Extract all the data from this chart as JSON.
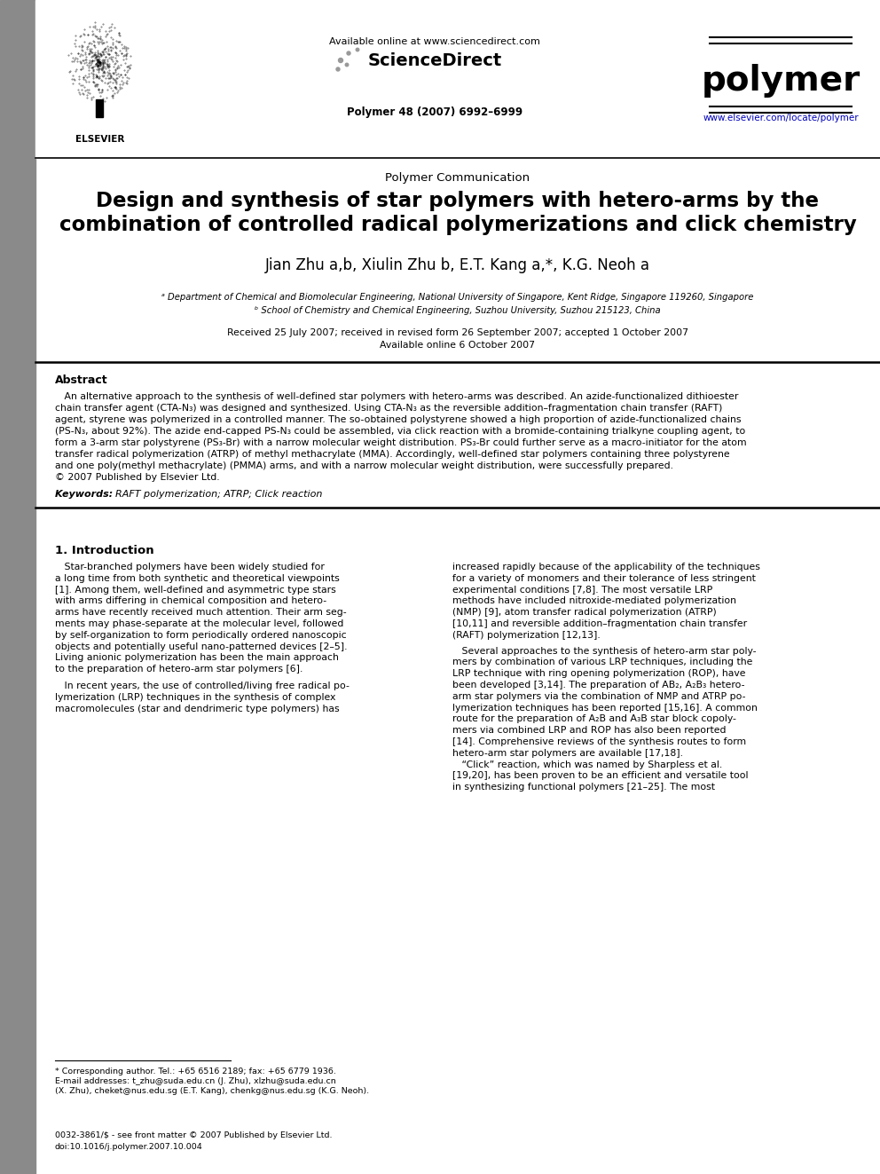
{
  "bg_color": "#ffffff",
  "left_bar_color": "#8a8a8a",
  "available_online": "Available online at www.sciencedirect.com",
  "sciencedirect": "ScienceDirect",
  "journal_name": "polymer",
  "polymer_citation": "Polymer 48 (2007) 6992–6999",
  "journal_url": "www.elsevier.com/locate/polymer",
  "article_type": "Polymer Communication",
  "title_line1": "Design and synthesis of star polymers with hetero-arms by the",
  "title_line2": "combination of controlled radical polymerizations and click chemistry",
  "authors_text": "Jian Zhu a,b, Xiulin Zhu b, E.T. Kang a,*, K.G. Neoh a",
  "affil1": "ᵃ Department of Chemical and Biomolecular Engineering, National University of Singapore, Kent Ridge, Singapore 119260, Singapore",
  "affil2": "ᵇ School of Chemistry and Chemical Engineering, Suzhou University, Suzhou 215123, China",
  "received": "Received 25 July 2007; received in revised form 26 September 2007; accepted 1 October 2007",
  "available_date": "Available online 6 October 2007",
  "abstract_title": "Abstract",
  "keywords_text": "RAFT polymerization; ATRP; Click reaction",
  "section1_title": "1. Introduction",
  "abstract_lines": [
    "   An alternative approach to the synthesis of well-defined star polymers with hetero-arms was described. An azide-functionalized dithioester",
    "chain transfer agent (CTA-N₃) was designed and synthesized. Using CTA-N₃ as the reversible addition–fragmentation chain transfer (RAFT)",
    "agent, styrene was polymerized in a controlled manner. The so-obtained polystyrene showed a high proportion of azide-functionalized chains",
    "(PS-N₃, about 92%). The azide end-capped PS-N₃ could be assembled, via click reaction with a bromide-containing trialkyne coupling agent, to",
    "form a 3-arm star polystyrene (PS₃-Br) with a narrow molecular weight distribution. PS₃-Br could further serve as a macro-initiator for the atom",
    "transfer radical polymerization (ATRP) of methyl methacrylate (MMA). Accordingly, well-defined star polymers containing three polystyrene",
    "and one poly(methyl methacrylate) (PMMA) arms, and with a narrow molecular weight distribution, were successfully prepared.",
    "© 2007 Published by Elsevier Ltd."
  ],
  "col1_lines": [
    "   Star-branched polymers have been widely studied for",
    "a long time from both synthetic and theoretical viewpoints",
    "[1]. Among them, well-defined and asymmetric type stars",
    "with arms differing in chemical composition and hetero-",
    "arms have recently received much attention. Their arm seg-",
    "ments may phase-separate at the molecular level, followed",
    "by self-organization to form periodically ordered nanoscopic",
    "objects and potentially useful nano-patterned devices [2–5].",
    "Living anionic polymerization has been the main approach",
    "to the preparation of hetero-arm star polymers [6].",
    "",
    "   In recent years, the use of controlled/living free radical po-",
    "lymerization (LRP) techniques in the synthesis of complex",
    "macromolecules (star and dendrimeric type polymers) has"
  ],
  "col2_lines": [
    "increased rapidly because of the applicability of the techniques",
    "for a variety of monomers and their tolerance of less stringent",
    "experimental conditions [7,8]. The most versatile LRP",
    "methods have included nitroxide-mediated polymerization",
    "(NMP) [9], atom transfer radical polymerization (ATRP)",
    "[10,11] and reversible addition–fragmentation chain transfer",
    "(RAFT) polymerization [12,13].",
    "   Several approaches to the synthesis of hetero-arm star poly-",
    "mers by combination of various LRP techniques, including the",
    "LRP technique with ring opening polymerization (ROP), have",
    "been developed [3,14]. The preparation of AB₂, A₂B₃ hetero-",
    "arm star polymers via the combination of NMP and ATRP po-",
    "lymerization techniques has been reported [15,16]. A common",
    "route for the preparation of A₂B and A₃B star block copoly-",
    "mers via combined LRP and ROP has also been reported",
    "[14]. Comprehensive reviews of the synthesis routes to form",
    "hetero-arm star polymers are available [17,18].",
    "   “Click” reaction, which was named by Sharpless et al.",
    "[19,20], has been proven to be an efficient and versatile tool",
    "in synthesizing functional polymers [21–25]. The most"
  ],
  "fn_line1": "* Corresponding author. Tel.: +65 6516 2189; fax: +65 6779 1936.",
  "fn_line2": "E-mail addresses: t_zhu@suda.edu.cn (J. Zhu), xlzhu@suda.edu.cn",
  "fn_line3": "(X. Zhu), cheket@nus.edu.sg (E.T. Kang), chenkg@nus.edu.sg (K.G. Neoh).",
  "issn_line": "0032-3861/$ - see front matter © 2007 Published by Elsevier Ltd.",
  "doi_line": "doi:10.1016/j.polymer.2007.10.004"
}
